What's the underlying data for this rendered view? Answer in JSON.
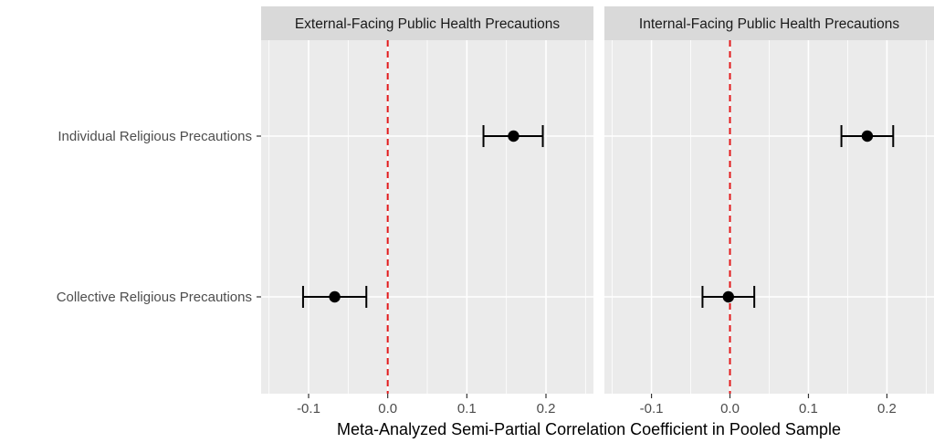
{
  "chart_data": {
    "type": "scatter",
    "subtype": "point-range (coefficient plot), faceted",
    "xlabel": "Meta-Analyzed Semi-Partial Correlation Coefficient in Pooled Sample",
    "xlim": [
      -0.16,
      0.26
    ],
    "x_ticks": [
      -0.1,
      0.0,
      0.1,
      0.2
    ],
    "x_tick_labels": [
      "-0.1",
      "0.0",
      "0.1",
      "0.2"
    ],
    "categories": [
      "Individual Religious Precautions",
      "Collective Religious Precautions"
    ],
    "reference_line": {
      "x": 0,
      "style": "dashed",
      "color": "#e31a1c"
    },
    "grid": true,
    "colors": {
      "panel": "#ebebeb",
      "strip": "#d9d9d9",
      "point": "#000000",
      "reference": "#e31a1c"
    },
    "panels": [
      {
        "strip_label": "External-Facing Public Health Precautions",
        "points": [
          {
            "category": "Individual Religious Precautions",
            "estimate": 0.159,
            "lower": 0.121,
            "upper": 0.196
          },
          {
            "category": "Collective Religious Precautions",
            "estimate": -0.067,
            "lower": -0.107,
            "upper": -0.027
          }
        ]
      },
      {
        "strip_label": "Internal-Facing Public Health Precautions",
        "points": [
          {
            "category": "Individual Religious Precautions",
            "estimate": 0.175,
            "lower": 0.142,
            "upper": 0.208
          },
          {
            "category": "Collective Religious Precautions",
            "estimate": -0.002,
            "lower": -0.035,
            "upper": 0.031
          }
        ]
      }
    ]
  }
}
